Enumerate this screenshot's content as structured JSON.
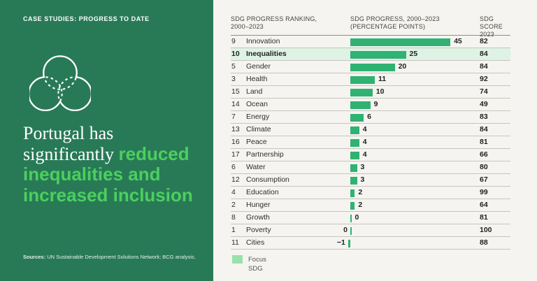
{
  "sidebar": {
    "eyebrow": "CASE STUDIES: PROGRESS TO DATE",
    "title_white": "Portugal has significantly ",
    "title_accent": "reduced inequalities and increased inclusion",
    "sources_label": "Sources:",
    "sources_text": " UN Sustainable Development Solutions Network; BCG analysis."
  },
  "colors": {
    "sidebar_green": "#287a57",
    "accent_green": "#4ccf5e",
    "bar_green": "#2fb272",
    "focus_row_bg": "#def3e3",
    "legend_swatch": "#99e2ab",
    "page_bg": "#f5f4f0"
  },
  "chart_data": {
    "type": "bar",
    "title": "SDG progress ranking, 2000–2023 (Portugal)",
    "headers": {
      "ranking": "SDG PROGRESS RANKING,\n2000–2023",
      "progress": "SDG PROGRESS, 2000–2023\n(PERCENTAGE POINTS)",
      "score": "SDG SCORE\n2023"
    },
    "xlim": [
      -1,
      45
    ],
    "legend_position": "bottom-left",
    "rows": [
      {
        "rank": "9",
        "name": "Innovation",
        "value": 45,
        "label": "45",
        "score": "82",
        "label_side": "right",
        "focus": false
      },
      {
        "rank": "10",
        "name": "Inequalities",
        "value": 25,
        "label": "25",
        "score": "84",
        "label_side": "right",
        "focus": true
      },
      {
        "rank": "5",
        "name": "Gender",
        "value": 20,
        "label": "20",
        "score": "84",
        "label_side": "right",
        "focus": false
      },
      {
        "rank": "3",
        "name": "Health",
        "value": 11,
        "label": "11",
        "score": "92",
        "label_side": "right",
        "focus": false
      },
      {
        "rank": "15",
        "name": "Land",
        "value": 10,
        "label": "10",
        "score": "74",
        "label_side": "right",
        "focus": false
      },
      {
        "rank": "14",
        "name": "Ocean",
        "value": 9,
        "label": "9",
        "score": "49",
        "label_side": "right",
        "focus": false
      },
      {
        "rank": "7",
        "name": "Energy",
        "value": 6,
        "label": "6",
        "score": "83",
        "label_side": "right",
        "focus": false
      },
      {
        "rank": "13",
        "name": "Climate",
        "value": 4,
        "label": "4",
        "score": "84",
        "label_side": "right",
        "focus": false
      },
      {
        "rank": "16",
        "name": "Peace",
        "value": 4,
        "label": "4",
        "score": "81",
        "label_side": "right",
        "focus": false
      },
      {
        "rank": "17",
        "name": "Partnership",
        "value": 4,
        "label": "4",
        "score": "66",
        "label_side": "right",
        "focus": false
      },
      {
        "rank": "6",
        "name": "Water",
        "value": 3,
        "label": "3",
        "score": "80",
        "label_side": "right",
        "focus": false
      },
      {
        "rank": "12",
        "name": "Consumption",
        "value": 3,
        "label": "3",
        "score": "67",
        "label_side": "right",
        "focus": false
      },
      {
        "rank": "4",
        "name": "Education",
        "value": 2,
        "label": "2",
        "score": "99",
        "label_side": "right",
        "focus": false
      },
      {
        "rank": "2",
        "name": "Hunger",
        "value": 2,
        "label": "2",
        "score": "64",
        "label_side": "right",
        "focus": false
      },
      {
        "rank": "8",
        "name": "Growth",
        "value": 0,
        "label": "0",
        "score": "81",
        "label_side": "right",
        "focus": false
      },
      {
        "rank": "1",
        "name": "Poverty",
        "value": 0,
        "label": "0",
        "score": "100",
        "label_side": "left",
        "focus": false
      },
      {
        "rank": "11",
        "name": "Cities",
        "value": -1,
        "label": "−1",
        "score": "88",
        "label_side": "left",
        "focus": false
      }
    ]
  },
  "legend": {
    "label": "Focus SDG"
  }
}
